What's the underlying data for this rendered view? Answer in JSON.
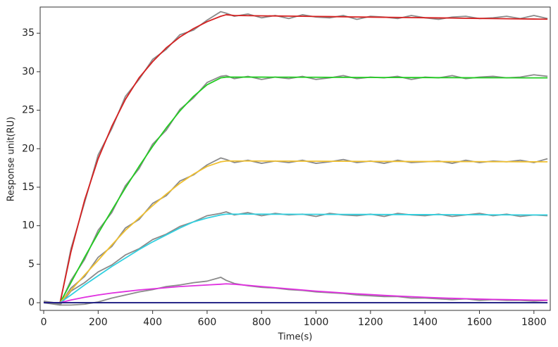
{
  "chart_data": {
    "type": "line",
    "xlabel": "Time(s)",
    "ylabel": "Response unit(RU)",
    "xlim": [
      -13,
      1860
    ],
    "ylim": [
      -1,
      38.4
    ],
    "xticks": [
      0,
      200,
      400,
      600,
      800,
      1000,
      1200,
      1400,
      1600,
      1800
    ],
    "yticks": [
      0,
      5,
      10,
      15,
      20,
      25,
      30,
      35
    ],
    "x": [
      0,
      60,
      100,
      150,
      200,
      250,
      300,
      350,
      400,
      450,
      500,
      550,
      600,
      650,
      670,
      700,
      750,
      800,
      850,
      900,
      950,
      1000,
      1050,
      1100,
      1150,
      1200,
      1250,
      1300,
      1350,
      1400,
      1450,
      1500,
      1550,
      1600,
      1650,
      1700,
      1750,
      1800,
      1850
    ],
    "series": [
      {
        "color": "#8a8a8a",
        "values": [
          0.2,
          -0.1,
          7.0,
          13.0,
          19.2,
          22.6,
          26.8,
          29.0,
          31.6,
          32.9,
          34.8,
          35.4,
          36.7,
          37.8,
          37.6,
          37.2,
          37.5,
          37.0,
          37.3,
          36.9,
          37.4,
          37.1,
          37.0,
          37.3,
          36.8,
          37.2,
          37.1,
          36.9,
          37.3,
          37.0,
          36.8,
          37.1,
          37.2,
          36.9,
          37.0,
          37.2,
          36.9,
          37.3,
          36.9
        ]
      },
      {
        "color": "#8a8a8a",
        "values": [
          0.1,
          -0.2,
          2.9,
          5.6,
          9.4,
          11.7,
          15.2,
          17.4,
          20.6,
          22.4,
          25.1,
          26.6,
          28.6,
          29.4,
          29.5,
          29.1,
          29.4,
          29.0,
          29.3,
          29.1,
          29.4,
          29.0,
          29.2,
          29.5,
          29.1,
          29.3,
          29.2,
          29.4,
          29.0,
          29.3,
          29.2,
          29.5,
          29.1,
          29.3,
          29.4,
          29.2,
          29.3,
          29.6,
          29.4
        ]
      },
      {
        "color": "#8a8a8a",
        "values": [
          0.1,
          -0.2,
          1.9,
          3.4,
          5.9,
          7.3,
          9.7,
          10.8,
          12.9,
          13.9,
          15.8,
          16.6,
          17.9,
          18.8,
          18.6,
          18.2,
          18.5,
          18.1,
          18.4,
          18.2,
          18.5,
          18.1,
          18.3,
          18.6,
          18.2,
          18.4,
          18.1,
          18.5,
          18.2,
          18.3,
          18.4,
          18.1,
          18.5,
          18.2,
          18.4,
          18.3,
          18.5,
          18.2,
          18.7
        ]
      },
      {
        "color": "#8a8a8a",
        "values": [
          0.1,
          -0.3,
          1.5,
          2.6,
          4.0,
          4.9,
          6.2,
          7.0,
          8.2,
          8.9,
          9.9,
          10.5,
          11.3,
          11.6,
          11.8,
          11.4,
          11.7,
          11.3,
          11.6,
          11.4,
          11.5,
          11.2,
          11.6,
          11.4,
          11.3,
          11.5,
          11.2,
          11.6,
          11.4,
          11.3,
          11.5,
          11.2,
          11.4,
          11.6,
          11.3,
          11.5,
          11.2,
          11.4,
          11.3
        ]
      },
      {
        "color": "#8a8a8a",
        "values": [
          0.0,
          -0.3,
          -0.3,
          -0.2,
          0.1,
          0.6,
          1.0,
          1.4,
          1.7,
          2.1,
          2.3,
          2.6,
          2.8,
          3.3,
          2.9,
          2.5,
          2.2,
          2.0,
          1.9,
          1.7,
          1.6,
          1.4,
          1.3,
          1.2,
          1.0,
          0.9,
          0.8,
          0.8,
          0.6,
          0.6,
          0.5,
          0.4,
          0.5,
          0.3,
          0.4,
          0.3,
          0.3,
          0.2,
          0.3
        ]
      },
      {
        "color": "#d62020",
        "values": [
          0,
          0,
          6.6,
          13.3,
          18.7,
          22.9,
          26.4,
          29.2,
          31.3,
          33.1,
          34.5,
          35.6,
          36.5,
          37.2,
          37.4,
          37.3,
          37.28,
          37.26,
          37.24,
          37.22,
          37.2,
          37.18,
          37.16,
          37.13,
          37.11,
          37.09,
          37.07,
          37.05,
          37.03,
          37.01,
          36.99,
          36.97,
          36.94,
          36.92,
          36.9,
          36.88,
          36.86,
          36.84,
          36.82
        ]
      },
      {
        "color": "#22cc22",
        "values": [
          0,
          0,
          2.6,
          5.9,
          9.0,
          12.0,
          14.9,
          17.7,
          20.3,
          22.7,
          24.9,
          26.8,
          28.3,
          29.2,
          29.3,
          29.3,
          29.3,
          29.3,
          29.29,
          29.29,
          29.28,
          29.28,
          29.27,
          29.27,
          29.26,
          29.26,
          29.25,
          29.25,
          29.24,
          29.24,
          29.23,
          29.23,
          29.22,
          29.22,
          29.21,
          29.21,
          29.2,
          29.2,
          29.2
        ]
      },
      {
        "color": "#f0c030",
        "values": [
          0,
          0,
          1.6,
          3.6,
          5.5,
          7.5,
          9.4,
          11.0,
          12.6,
          14.1,
          15.5,
          16.7,
          17.7,
          18.3,
          18.4,
          18.4,
          18.4,
          18.4,
          18.39,
          18.39,
          18.38,
          18.38,
          18.37,
          18.37,
          18.36,
          18.36,
          18.35,
          18.35,
          18.34,
          18.34,
          18.33,
          18.33,
          18.32,
          18.32,
          18.31,
          18.31,
          18.3,
          18.3,
          18.3
        ]
      },
      {
        "color": "#30d0e0",
        "values": [
          0,
          0,
          1.0,
          2.3,
          3.5,
          4.7,
          5.8,
          6.9,
          7.9,
          8.8,
          9.7,
          10.5,
          11.0,
          11.4,
          11.5,
          11.5,
          11.5,
          11.5,
          11.49,
          11.49,
          11.48,
          11.48,
          11.47,
          11.47,
          11.46,
          11.46,
          11.45,
          11.45,
          11.44,
          11.44,
          11.43,
          11.43,
          11.42,
          11.42,
          11.41,
          11.41,
          11.4,
          11.4,
          11.4
        ]
      },
      {
        "color": "#e030e0",
        "values": [
          0,
          0,
          0.35,
          0.7,
          1.0,
          1.25,
          1.45,
          1.65,
          1.8,
          1.95,
          2.1,
          2.2,
          2.3,
          2.4,
          2.45,
          2.4,
          2.25,
          2.1,
          1.95,
          1.8,
          1.65,
          1.5,
          1.38,
          1.26,
          1.15,
          1.05,
          0.95,
          0.86,
          0.78,
          0.7,
          0.63,
          0.57,
          0.52,
          0.47,
          0.43,
          0.4,
          0.37,
          0.34,
          0.32
        ]
      },
      {
        "color": "#1a1a80",
        "values": [
          0,
          0,
          0,
          0,
          0,
          0,
          0,
          0,
          0,
          0,
          0,
          0,
          0,
          0,
          0,
          0,
          0,
          0,
          0,
          0,
          0,
          0,
          0,
          0,
          0,
          0,
          0,
          0,
          0,
          0,
          0,
          0,
          0,
          0,
          0,
          0,
          0,
          0,
          0
        ]
      }
    ]
  }
}
